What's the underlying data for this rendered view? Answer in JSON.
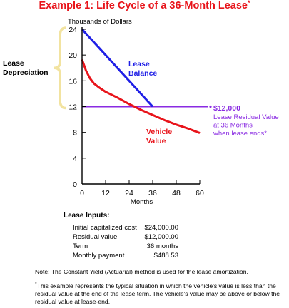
{
  "title": {
    "text": "Example 1: Life Cycle of a 36-Month Lease",
    "marker": "*"
  },
  "chart_data": {
    "type": "line",
    "title": "Example 1: Life Cycle of a 36-Month Lease",
    "ylabel": "Thousands of Dollars",
    "xlabel": "Months",
    "xlim": [
      0,
      60
    ],
    "ylim": [
      0,
      24
    ],
    "xticks": [
      0,
      12,
      24,
      36,
      48,
      60
    ],
    "yticks": [
      0,
      4,
      8,
      12,
      16,
      20,
      24
    ],
    "series": [
      {
        "name": "Lease Balance",
        "color": "#1f1fe6",
        "points": [
          [
            0,
            24
          ],
          [
            36,
            12
          ]
        ]
      },
      {
        "name": "Vehicle Value",
        "color": "#e8141b",
        "points": [
          [
            0,
            19.3
          ],
          [
            2,
            17.6
          ],
          [
            4,
            16.4
          ],
          [
            6,
            15.6
          ],
          [
            9,
            14.9
          ],
          [
            12,
            14.3
          ],
          [
            18,
            13.4
          ],
          [
            24,
            12.4
          ],
          [
            30,
            11.5
          ],
          [
            36,
            10.7
          ],
          [
            42,
            9.9
          ],
          [
            48,
            9.2
          ],
          [
            54,
            8.6
          ],
          [
            60,
            7.9
          ]
        ]
      },
      {
        "name": "Lease Residual Value",
        "color": "#8a2be2",
        "points": [
          [
            0,
            12
          ],
          [
            64,
            12
          ]
        ]
      }
    ],
    "annotations": {
      "lease_depreciation": "Lease\nDepreciation",
      "lease_balance": "Lease\nBalance",
      "vehicle_value": "Vehicle\nValue",
      "residual_value": "$12,000",
      "residual_desc": "Lease Residual Value\nat 36 Months\nwhen lease ends*"
    }
  },
  "inputs": {
    "heading": "Lease Inputs:",
    "rows": [
      {
        "label": "Initial capitalized cost",
        "value": "$24,000.00"
      },
      {
        "label": "Residual value",
        "value": "$12,000.00"
      },
      {
        "label": "Term",
        "value": "36 months"
      },
      {
        "label": "Monthly payment",
        "value": "$488.53"
      }
    ]
  },
  "notes": {
    "note": "Note: The Constant Yield (Actuarial) method is used for the lease amortization.",
    "footnote_marker": "*",
    "footnote": "This example represents the typical situation in which the vehicle's value is less than the residual value at the end of the lease term. The vehicle's value may be above or below the residual value at lease-end."
  },
  "colors": {
    "red": "#e8141b",
    "blue": "#1f1fe6",
    "purple": "#8a2be2",
    "brace": "#f2e3a0"
  }
}
